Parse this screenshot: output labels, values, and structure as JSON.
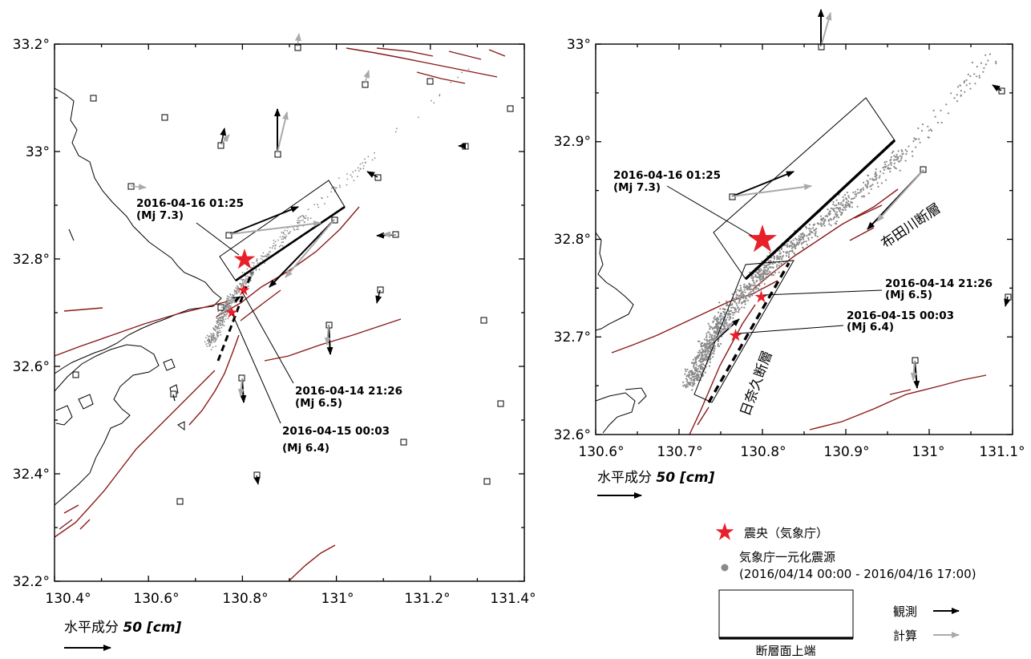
{
  "left_map": {
    "lat_ticks": [
      "33.2°",
      "33°",
      "32.8°",
      "32.6°",
      "32.4°",
      "32.2°"
    ],
    "lon_ticks": [
      "130.4°",
      "130.6°",
      "130.8°",
      "131°",
      "131.2°",
      "131.4°"
    ],
    "events": [
      {
        "date": "2016-04-16 01:25",
        "mag": "(Mj 7.3)"
      },
      {
        "date": "2016-04-14 21:26",
        "mag": "(Mj 6.5)"
      },
      {
        "date": "2016-04-15 00:03",
        "mag": "(Mj 6.4)"
      }
    ],
    "scale_label": "水平成分",
    "scale_value": "50 [cm]"
  },
  "right_map": {
    "lat_ticks": [
      "33°",
      "32.9°",
      "32.8°",
      "32.7°",
      "32.6°"
    ],
    "lon_ticks": [
      "130.6°",
      "130.7°",
      "130.8°",
      "130.9°",
      "131°",
      "131.1°"
    ],
    "events": [
      {
        "date": "2016-04-16 01:25",
        "mag": "(Mj 7.3)"
      },
      {
        "date": "2016-04-14 21:26",
        "mag": "(Mj 6.5)"
      },
      {
        "date": "2016-04-15 00:03",
        "mag": "(Mj 6.4)"
      }
    ],
    "fault_futagawa": "布田川断層",
    "fault_hinagu": "日奈久断層",
    "scale_label": "水平成分",
    "scale_value": "50 [cm]"
  },
  "legend": {
    "epicenter": "震央（気象庁）",
    "seismicity_title": "気象庁一元化震源",
    "seismicity_period": "(2016/04/14 00:00 - 2016/04/16 17:00)",
    "fault_top": "断層面上端",
    "observed": "観測",
    "computed": "計算",
    "colors": {
      "epicenter": "#e8202a",
      "seismicity": "#8a8a8a",
      "fault": "#8b1a1a",
      "observed": "#000000",
      "computed": "#aaaaaa"
    }
  }
}
